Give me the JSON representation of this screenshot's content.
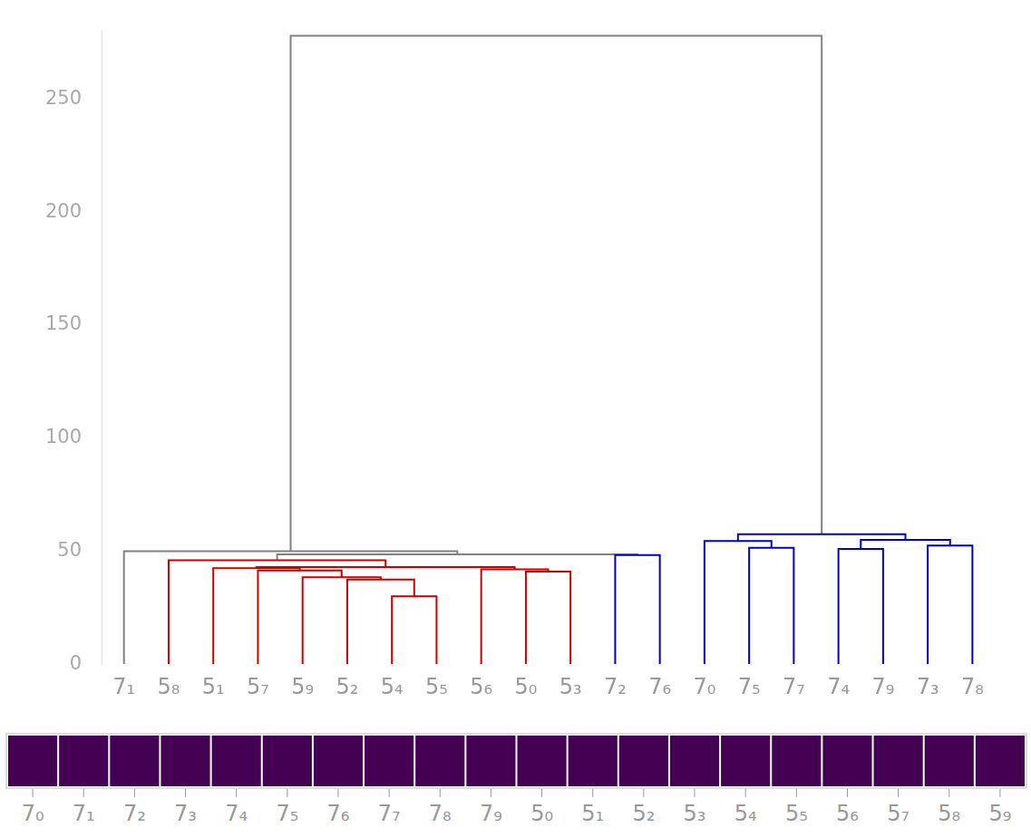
{
  "chart_data": {
    "type": "dendrogram",
    "leaves": [
      "7₁",
      "5₈",
      "5₁",
      "5₇",
      "5₉",
      "5₂",
      "5₄",
      "5₅",
      "5₆",
      "5₀",
      "5₃",
      "7₂",
      "7₆",
      "7₀",
      "7₅",
      "7₇",
      "7₄",
      "7₉",
      "7₃",
      "7₈"
    ],
    "links": [
      {
        "children": [
          6,
          7
        ],
        "height": 30,
        "color": "#cc0000"
      },
      {
        "children": [
          5,
          20
        ],
        "height": 37.5,
        "color": "#cc0000"
      },
      {
        "children": [
          4,
          21
        ],
        "height": 38.5,
        "color": "#cc0000"
      },
      {
        "children": [
          3,
          22
        ],
        "height": 41.5,
        "color": "#cc0000"
      },
      {
        "children": [
          9,
          10
        ],
        "height": 41,
        "color": "#cc0000"
      },
      {
        "children": [
          8,
          24
        ],
        "height": 42,
        "color": "#cc0000"
      },
      {
        "children": [
          2,
          23
        ],
        "height": 42.5,
        "color": "#cc0000"
      },
      {
        "children": [
          26,
          25
        ],
        "height": 43,
        "color": "#cc0000"
      },
      {
        "children": [
          1,
          27
        ],
        "height": 46,
        "color": "#cc0000"
      },
      {
        "children": [
          11,
          12
        ],
        "height": 48.3,
        "color": "#0000cc"
      },
      {
        "children": [
          28,
          29
        ],
        "height": 48.6,
        "color": "#808080"
      },
      {
        "children": [
          0,
          30
        ],
        "height": 50,
        "color": "#808080"
      },
      {
        "children": [
          14,
          15
        ],
        "height": 51.5,
        "color": "#0000cc"
      },
      {
        "children": [
          13,
          32
        ],
        "height": 54.5,
        "color": "#0000cc"
      },
      {
        "children": [
          16,
          17
        ],
        "height": 51,
        "color": "#0000cc"
      },
      {
        "children": [
          18,
          19
        ],
        "height": 52.5,
        "color": "#0000cc"
      },
      {
        "children": [
          34,
          35
        ],
        "height": 55,
        "color": "#0000cc"
      },
      {
        "children": [
          33,
          36
        ],
        "height": 57.5,
        "color": "#0000cc"
      },
      {
        "children": [
          31,
          37
        ],
        "height": 278,
        "color": "#808080"
      }
    ],
    "ylim": [
      0,
      280
    ],
    "yticks": [
      0,
      50,
      100,
      150,
      200,
      250
    ],
    "grid": false
  },
  "image_strip": {
    "labels": [
      "7₀",
      "7₁",
      "7₂",
      "7₃",
      "7₄",
      "7₅",
      "7₆",
      "7₇",
      "7₈",
      "7₉",
      "5₀",
      "5₁",
      "5₂",
      "5₃",
      "5₄",
      "5₅",
      "5₆",
      "5₇",
      "5₈",
      "5₉"
    ]
  }
}
